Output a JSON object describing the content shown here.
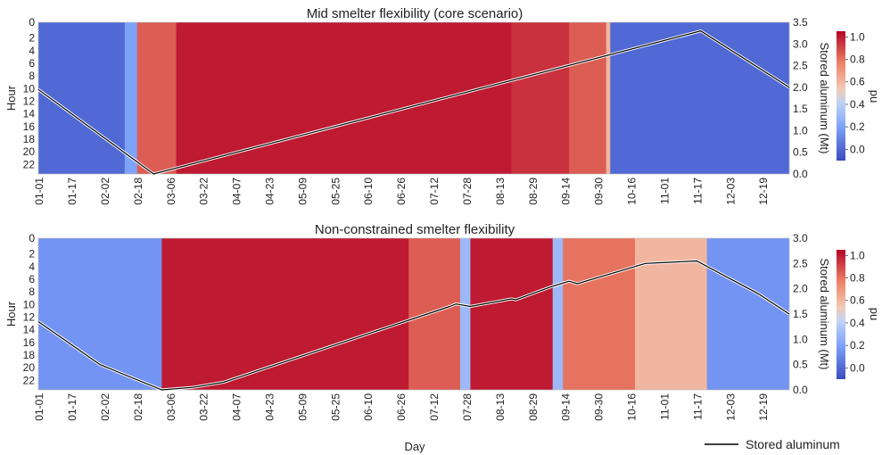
{
  "chart_data": [
    {
      "type": "heatmap",
      "title": "Mid smelter flexibility (core scenario)",
      "xlabel": "",
      "ylabel": "Hour",
      "y2label": "Stored aluminum (Mt)",
      "x_tick_labels": [
        "01-01",
        "01-17",
        "02-02",
        "02-18",
        "03-06",
        "03-22",
        "04-07",
        "04-23",
        "05-09",
        "05-25",
        "06-10",
        "06-26",
        "07-12",
        "07-28",
        "08-13",
        "08-29",
        "09-14",
        "09-30",
        "10-16",
        "11-01",
        "11-17",
        "12-03",
        "12-19"
      ],
      "y_tick_labels": [
        "0",
        "2",
        "4",
        "6",
        "8",
        "10",
        "12",
        "14",
        "16",
        "18",
        "20",
        "22"
      ],
      "y2_ticks": [
        "0.0",
        "0.5",
        "1.0",
        "1.5",
        "2.0",
        "2.5",
        "3.0",
        "3.5"
      ],
      "y2lim": [
        0,
        3.5
      ],
      "colorbar": {
        "label": "pu",
        "ticks": [
          "0.0",
          "0.2",
          "0.4",
          "0.6",
          "0.8",
          "1.0"
        ],
        "range": [
          -0.1,
          1.05
        ]
      },
      "days": 365,
      "hours": 24,
      "segments": [
        {
          "start": 0,
          "end": 42,
          "value": 0.0
        },
        {
          "start": 42,
          "end": 48,
          "value": 0.2
        },
        {
          "start": 48,
          "end": 67,
          "value": 0.85
        },
        {
          "start": 67,
          "end": 230,
          "value": 1.0
        },
        {
          "start": 230,
          "end": 258,
          "value": 0.95
        },
        {
          "start": 258,
          "end": 276,
          "value": 0.85
        },
        {
          "start": 276,
          "end": 278,
          "value": 0.6
        },
        {
          "start": 278,
          "end": 365,
          "value": 0.0
        }
      ],
      "stored_aluminum": {
        "name": "Stored aluminum",
        "day": [
          0,
          56,
          322,
          365
        ],
        "value": [
          1.95,
          0.0,
          3.3,
          2.0
        ]
      }
    },
    {
      "type": "heatmap",
      "title": "Non-constrained smelter flexibility",
      "xlabel": "Day",
      "ylabel": "Hour",
      "y2label": "Stored aluminum (Mt)",
      "x_tick_labels": [
        "01-01",
        "01-17",
        "02-02",
        "02-18",
        "03-06",
        "03-22",
        "04-07",
        "04-23",
        "05-09",
        "05-25",
        "06-10",
        "06-26",
        "07-12",
        "07-28",
        "08-13",
        "08-29",
        "09-14",
        "09-30",
        "10-16",
        "11-01",
        "11-17",
        "12-03",
        "12-19"
      ],
      "y_tick_labels": [
        "0",
        "2",
        "4",
        "6",
        "8",
        "10",
        "12",
        "14",
        "16",
        "18",
        "20",
        "22"
      ],
      "y2_ticks": [
        "0.0",
        "0.5",
        "1.0",
        "1.5",
        "2.0",
        "2.5",
        "3.0"
      ],
      "y2lim": [
        0,
        3.0
      ],
      "colorbar": {
        "label": "pu",
        "ticks": [
          "0.0",
          "0.2",
          "0.4",
          "0.6",
          "0.8",
          "1.0"
        ],
        "range": [
          -0.1,
          1.05
        ]
      },
      "days": 365,
      "hours": 24,
      "segments": [
        {
          "start": 0,
          "end": 60,
          "value": 0.15
        },
        {
          "start": 60,
          "end": 180,
          "value": 1.0
        },
        {
          "start": 180,
          "end": 205,
          "value": 0.85
        },
        {
          "start": 205,
          "end": 210,
          "value": 0.3
        },
        {
          "start": 210,
          "end": 250,
          "value": 1.0
        },
        {
          "start": 250,
          "end": 255,
          "value": 0.3
        },
        {
          "start": 255,
          "end": 290,
          "value": 0.8
        },
        {
          "start": 290,
          "end": 325,
          "value": 0.6
        },
        {
          "start": 325,
          "end": 365,
          "value": 0.15
        }
      ],
      "stored_aluminum": {
        "name": "Stored aluminum",
        "day": [
          0,
          30,
          60,
          75,
          90,
          200,
          203,
          210,
          230,
          232,
          250,
          258,
          262,
          295,
          320,
          350,
          365
        ],
        "value": [
          1.35,
          0.5,
          0.0,
          0.05,
          0.15,
          1.65,
          1.7,
          1.65,
          1.8,
          1.78,
          2.05,
          2.15,
          2.1,
          2.5,
          2.55,
          1.9,
          1.5
        ]
      }
    }
  ],
  "legend": {
    "label": "Stored aluminum",
    "position": "bottom-right"
  }
}
